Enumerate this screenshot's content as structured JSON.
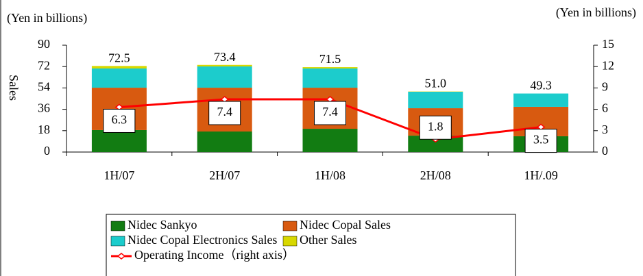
{
  "chart_data": {
    "type": "stacked-bar-line",
    "ylabel": "Sales",
    "yunit": "(Yen in billions)",
    "y2unit": "(Yen in billions)",
    "categories": [
      "1H/07",
      "2H/07",
      "1H/08",
      "2H/08",
      "1H/.09"
    ],
    "series": [
      {
        "name": "Nidec Sankyo",
        "color": "#127c12",
        "values": [
          18.5,
          17.3,
          19.6,
          13.8,
          13.3
        ]
      },
      {
        "name": "Nidec Copal Sales",
        "color": "#d85a10",
        "values": [
          35.7,
          36.9,
          34.6,
          23.1,
          24.8
        ]
      },
      {
        "name": "Nidec Copal Electronics Sales",
        "color": "#1ccccc",
        "values": [
          16.2,
          17.9,
          16.2,
          13.9,
          11.2
        ]
      },
      {
        "name": "Other Sales",
        "color": "#d8d800",
        "values": [
          2.1,
          1.3,
          1.1,
          0.2,
          0
        ]
      },
      {
        "name": "Operating Income（right axis）",
        "color": "#ff0000",
        "type": "line",
        "axis": "y2",
        "values": [
          6.3,
          7.4,
          7.4,
          1.8,
          3.5
        ]
      }
    ],
    "totals": [
      72.5,
      73.4,
      71.5,
      51.0,
      49.3
    ],
    "totals_labels": [
      "72.5",
      "73.4",
      "71.5",
      "51.0",
      "49.3"
    ],
    "ylim": [
      0,
      90
    ],
    "yticks": [
      0,
      18,
      36,
      54,
      72,
      90
    ],
    "y2lim": [
      0,
      15
    ],
    "y2ticks": [
      0,
      3,
      6,
      9,
      12,
      15
    ]
  }
}
